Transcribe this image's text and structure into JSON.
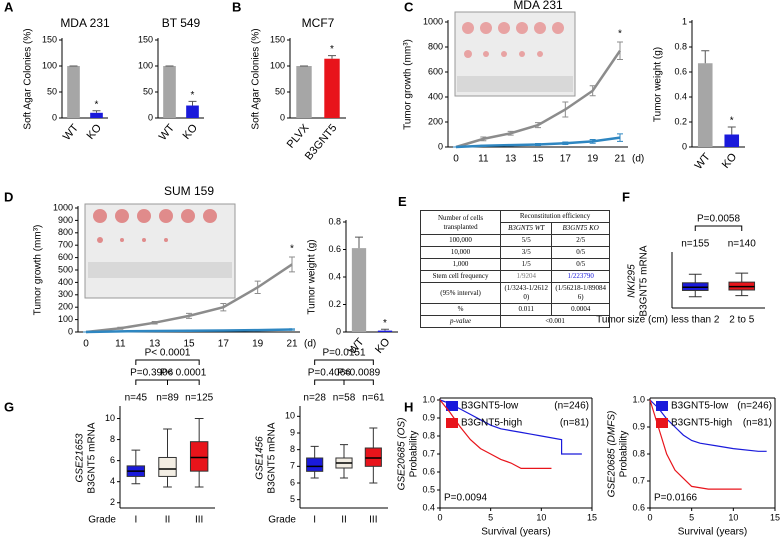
{
  "chart_data": [
    {
      "panel": "A",
      "type": "bar",
      "title": "MDA 231",
      "ylabel": "Soft Agar Colonies (%)",
      "categories": [
        "WT",
        "KO"
      ],
      "values": [
        100,
        10
      ],
      "errors": [
        0,
        4
      ],
      "colors": [
        "#a6a6a6",
        "#1a1adb"
      ],
      "label_colors": [
        "#000000",
        "#1a1adb"
      ],
      "ylim": [
        0,
        150
      ],
      "yticks": [
        0,
        50,
        100,
        150
      ],
      "star": "*"
    },
    {
      "type": "bar",
      "title": "BT 549",
      "categories": [
        "WT",
        "KO"
      ],
      "values": [
        100,
        24
      ],
      "errors": [
        0,
        8
      ],
      "colors": [
        "#a6a6a6",
        "#1a1adb"
      ],
      "label_colors": [
        "#000000",
        "#1a1adb"
      ],
      "ylim": [
        0,
        150
      ],
      "yticks": [
        0,
        50,
        100,
        150
      ],
      "star": "*"
    },
    {
      "panel": "B",
      "type": "bar",
      "title": "MCF7",
      "ylabel": "Soft Agar Colonies (%)",
      "categories": [
        "PLVX",
        "B3GNT5"
      ],
      "values": [
        100,
        114
      ],
      "errors": [
        0,
        6
      ],
      "colors": [
        "#a6a6a6",
        "#e8141b"
      ],
      "label_colors": [
        "#000000",
        "#e8141b"
      ],
      "ylim": [
        0,
        150
      ],
      "yticks": [
        0,
        50,
        100,
        150
      ],
      "star": "*"
    },
    {
      "panel": "C",
      "type": "line",
      "title": "MDA 231",
      "ylabel": "Tumor growth (mm³)",
      "categories": [
        "0",
        "11",
        "13",
        "15",
        "17",
        "19",
        "21"
      ],
      "x_unit": "(d)",
      "series": [
        {
          "color": "#8c8c8c",
          "values": [
            0,
            65,
            110,
            175,
            300,
            450,
            770
          ],
          "errors": [
            0,
            15,
            15,
            20,
            60,
            40,
            70
          ]
        },
        {
          "color": "#2e86c1",
          "values": [
            0,
            10,
            15,
            20,
            30,
            45,
            75
          ],
          "errors": [
            0,
            5,
            5,
            8,
            10,
            15,
            30
          ]
        }
      ],
      "ylim": [
        0,
        1000
      ],
      "yticks": [
        0,
        200,
        400,
        600,
        800,
        1000
      ],
      "star": "*"
    },
    {
      "type": "bar",
      "ylabel": "Tumor weight (g)",
      "categories": [
        "WT",
        "KO"
      ],
      "values": [
        0.67,
        0.1
      ],
      "errors": [
        0.1,
        0.06
      ],
      "colors": [
        "#a6a6a6",
        "#1a1adb"
      ],
      "label_colors": [
        "#000000",
        "#1a1adb"
      ],
      "ylim": [
        0,
        1
      ],
      "yticks": [
        0,
        0.2,
        0.4,
        0.6,
        0.8,
        1
      ],
      "star": "*"
    },
    {
      "panel": "D",
      "type": "line",
      "title": "SUM 159",
      "ylabel": "Tumor growth (mm³)",
      "categories": [
        "0",
        "11",
        "13",
        "15",
        "17",
        "19",
        "21"
      ],
      "x_unit": "(d)",
      "series": [
        {
          "color": "#8c8c8c",
          "values": [
            0,
            30,
            75,
            130,
            200,
            360,
            545
          ],
          "errors": [
            0,
            8,
            10,
            20,
            30,
            50,
            60
          ]
        },
        {
          "color": "#2e86c1",
          "values": [
            0,
            5,
            8,
            10,
            12,
            15,
            20
          ],
          "errors": [
            0,
            2,
            2,
            3,
            3,
            4,
            5
          ]
        }
      ],
      "ylim": [
        0,
        1000
      ],
      "yticks": [
        0,
        100,
        200,
        300,
        400,
        500,
        600,
        700,
        800,
        900,
        1000
      ],
      "star": "*"
    },
    {
      "type": "bar",
      "ylabel": "Tumor weight (g)",
      "categories": [
        "WT",
        "KO"
      ],
      "values": [
        0.61,
        0.01
      ],
      "errors": [
        0.08,
        0.01
      ],
      "colors": [
        "#a6a6a6",
        "#1a1adb"
      ],
      "label_colors": [
        "#000000",
        "#1a1adb"
      ],
      "ylim": [
        0,
        0.8
      ],
      "yticks": [
        0,
        0.2,
        0.4,
        0.6,
        0.8
      ],
      "star": "*"
    },
    {
      "panel": "F",
      "type": "box",
      "dataset": "NKI295",
      "ylabel": "B3GNT5 mRNA",
      "xlabel": "Tumor size (cm)",
      "categories": [
        "less than 2",
        "2 to 5"
      ],
      "n_labels": [
        "n=155",
        "n=140"
      ],
      "colors": [
        "#1a1adb",
        "#e8141b"
      ],
      "boxes": [
        {
          "min": -0.7,
          "q1": -0.42,
          "median": -0.28,
          "q3": -0.08,
          "max": 0.3
        },
        {
          "min": -0.65,
          "q1": -0.4,
          "median": -0.25,
          "q3": -0.05,
          "max": 0.35
        }
      ],
      "ylim": [
        -1.2,
        1.2
      ],
      "brackets": [
        {
          "label": "P=0.0058",
          "between": [
            "less than 2",
            "2 to 5"
          ]
        }
      ]
    },
    {
      "panel": "G",
      "type": "box",
      "dataset": "GSE21653",
      "ylabel": "B3GNT5 mRNA",
      "xlabel": "Grade",
      "categories": [
        "I",
        "II",
        "III"
      ],
      "n_labels": [
        "n=45",
        "n=89",
        "n=125"
      ],
      "colors": [
        "#1a1adb",
        "#f3eee4",
        "#e8141b"
      ],
      "boxes": [
        {
          "min": 3.8,
          "q1": 4.5,
          "median": 5,
          "q3": 5.5,
          "max": 7
        },
        {
          "min": 3.5,
          "q1": 4.5,
          "median": 5.2,
          "q3": 6.3,
          "max": 9
        },
        {
          "min": 3.5,
          "q1": 5,
          "median": 6.3,
          "q3": 7.8,
          "max": 10
        }
      ],
      "ylim": [
        1.5,
        11
      ],
      "yticks": [
        2,
        4,
        6,
        8,
        10
      ],
      "brackets": [
        {
          "label": "P< 0.0001",
          "between": [
            "I",
            "III"
          ]
        },
        {
          "label": "P=0.3906",
          "between": [
            "I",
            "II"
          ]
        },
        {
          "label": "P< 0.0001",
          "between": [
            "II",
            "III"
          ]
        }
      ]
    },
    {
      "type": "box",
      "dataset": "GSE1456",
      "ylabel": "B3GNT5 mRNA",
      "xlabel": "Grade",
      "categories": [
        "I",
        "II",
        "III"
      ],
      "n_labels": [
        "n=28",
        "n=58",
        "n=61"
      ],
      "colors": [
        "#1a1adb",
        "#f3eee4",
        "#e8141b"
      ],
      "boxes": [
        {
          "min": 6.3,
          "q1": 6.7,
          "median": 7,
          "q3": 7.5,
          "max": 8.2
        },
        {
          "min": 6.3,
          "q1": 6.9,
          "median": 7.2,
          "q3": 7.5,
          "max": 8.3
        },
        {
          "min": 6,
          "q1": 7,
          "median": 7.5,
          "q3": 8.1,
          "max": 9.3
        }
      ],
      "ylim": [
        4.5,
        10.5
      ],
      "yticks": [
        5,
        6,
        7,
        8,
        9,
        10
      ],
      "brackets": [
        {
          "label": "P=0.0151",
          "between": [
            "I",
            "III"
          ]
        },
        {
          "label": "P=0.4066",
          "between": [
            "I",
            "II"
          ]
        },
        {
          "label": "P=0.0089",
          "between": [
            "II",
            "III"
          ]
        }
      ]
    },
    {
      "panel": "H",
      "type": "km",
      "dataset": "GSE20685 (OS)",
      "ylabel": "Probability",
      "xlabel": "Survival (years)",
      "p_label": "P=0.0094",
      "series": [
        {
          "name": "B3GNT5-low",
          "n_label": "(n=246)",
          "color": "#1a1adb",
          "x": [
            0,
            1,
            2,
            3,
            4,
            5,
            6,
            7,
            8,
            9,
            10,
            12,
            12,
            14
          ],
          "y": [
            1,
            0.98,
            0.95,
            0.92,
            0.89,
            0.86,
            0.84,
            0.83,
            0.82,
            0.81,
            0.8,
            0.78,
            0.7,
            0.7
          ]
        },
        {
          "name": "B3GNT5-high",
          "n_label": "(n=81)",
          "color": "#e8141b",
          "x": [
            0,
            1,
            2,
            3,
            4,
            5,
            6,
            7,
            8,
            11
          ],
          "y": [
            1,
            0.93,
            0.85,
            0.78,
            0.73,
            0.7,
            0.67,
            0.65,
            0.62,
            0.62
          ]
        }
      ],
      "xlim": [
        0,
        15
      ],
      "xticks": [
        0,
        5,
        10,
        15
      ],
      "ylim": [
        0.4,
        1
      ],
      "yticks": [
        0.4,
        0.5,
        0.6,
        0.7,
        0.8,
        0.9,
        {
          "value": 1,
          "label": "1.0"
        }
      ]
    },
    {
      "type": "km",
      "dataset": "GSE20685 (DMFS)",
      "ylabel": "Probability",
      "xlabel": "Survival (years)",
      "p_label": "P=0.0166",
      "series": [
        {
          "name": "B3GNT5-low",
          "n_label": "(n=246)",
          "color": "#1a1adb",
          "x": [
            0,
            1,
            2,
            3,
            4,
            5,
            6,
            8,
            10,
            13,
            14
          ],
          "y": [
            1,
            0.97,
            0.93,
            0.9,
            0.87,
            0.85,
            0.84,
            0.83,
            0.82,
            0.81,
            0.81
          ]
        },
        {
          "name": "B3GNT5-high",
          "n_label": "(n=81)",
          "color": "#e8141b",
          "x": [
            0,
            1,
            2,
            3,
            4,
            5,
            7,
            11
          ],
          "y": [
            1,
            0.9,
            0.8,
            0.74,
            0.71,
            0.68,
            0.67,
            0.67
          ]
        }
      ],
      "xlim": [
        0,
        15
      ],
      "xticks": [
        0,
        5,
        10,
        15
      ],
      "ylim": [
        0.6,
        1
      ],
      "yticks": [
        0.6,
        0.7,
        0.8,
        0.9,
        {
          "value": 1,
          "label": "1.0"
        }
      ]
    }
  ],
  "table": {
    "panel": "E",
    "header": [
      "Number of cells transplanted",
      "Reconstitution efficiency"
    ],
    "subheader": [
      "B3GNT5 WT",
      "B3GNT5 KO"
    ],
    "rows": [
      [
        "100,000",
        "5/5",
        "2/5"
      ],
      [
        "10,000",
        "3/5",
        "0/5"
      ],
      [
        "1,000",
        "1/5",
        "0/5"
      ],
      [
        "Stem cell frequency",
        "1/9204",
        "1/223790"
      ],
      [
        "(95% interval)",
        "(1/3243-1/26120)",
        "(1/56218-1/890846)"
      ],
      [
        "%",
        "0.011",
        "0.0004"
      ],
      [
        "p-value",
        "<0.001"
      ]
    ]
  }
}
